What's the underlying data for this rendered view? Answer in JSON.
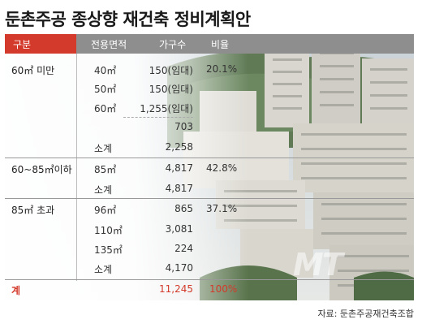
{
  "title": "둔촌주공 종상향 재건축 정비계획안",
  "headers": {
    "group": "구분",
    "area": "전용면적",
    "households": "가구수",
    "ratio": "비율"
  },
  "groups": [
    {
      "label": "60㎡ 미만",
      "ratio": "20.1%",
      "rows": [
        {
          "area": "40㎡",
          "households": "150(임대)"
        },
        {
          "area": "50㎡",
          "households": "150(임대)"
        },
        {
          "area": "60㎡",
          "households": "1,255(임대)"
        },
        {
          "area": "",
          "households": "703"
        },
        {
          "area": "소계",
          "households": "2,258"
        }
      ]
    },
    {
      "label": "60~85㎡이하",
      "ratio": "42.8%",
      "rows": [
        {
          "area": "85㎡",
          "households": "4,817"
        },
        {
          "area": "소계",
          "households": "4,817"
        }
      ]
    },
    {
      "label": "85㎡ 초과",
      "ratio": "37.1%",
      "rows": [
        {
          "area": "96㎡",
          "households": "865"
        },
        {
          "area": "110㎡",
          "households": "3,081"
        },
        {
          "area": "135㎡",
          "households": "224"
        },
        {
          "area": "소계",
          "households": "4,170"
        }
      ]
    }
  ],
  "total": {
    "label": "계",
    "households": "11,245",
    "ratio": "100%"
  },
  "watermark": "MT",
  "source": "자료: 둔촌주공재건축조합",
  "colors": {
    "accent": "#d33a2b",
    "header": "#8e8e8e"
  }
}
